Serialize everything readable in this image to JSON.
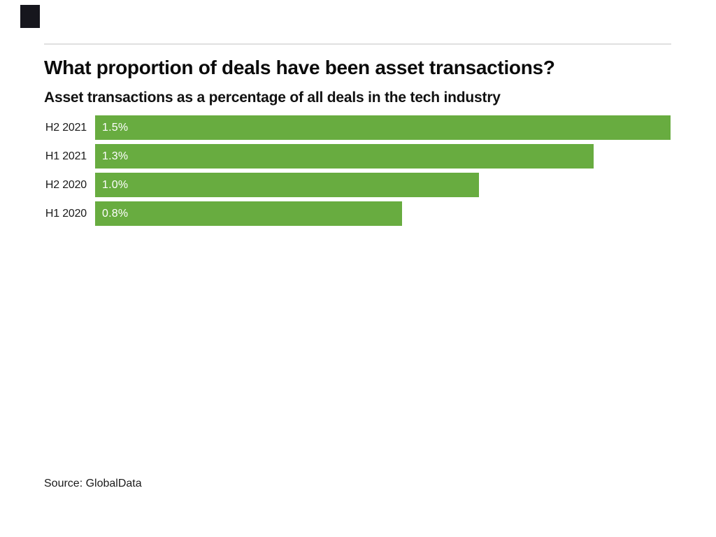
{
  "header": {
    "logo_color": "#16161d",
    "divider_color": "#e0e0e0"
  },
  "chart_data": {
    "type": "bar",
    "orientation": "horizontal",
    "title": "What proportion of deals have been asset transactions?",
    "subtitle": "Asset transactions as a percentage of all deals in the tech industry",
    "categories": [
      "H2 2021",
      "H1 2021",
      "H2 2020",
      "H1 2020"
    ],
    "values": [
      1.5,
      1.3,
      1.0,
      0.8
    ],
    "value_labels": [
      "1.5%",
      "1.3%",
      "1.0%",
      "0.8%"
    ],
    "xlim": [
      0,
      1.5
    ],
    "bar_color": "#68ac40",
    "value_label_color": "#ffffff",
    "grid": false,
    "legend": false,
    "source": "Source: GlobalData"
  }
}
